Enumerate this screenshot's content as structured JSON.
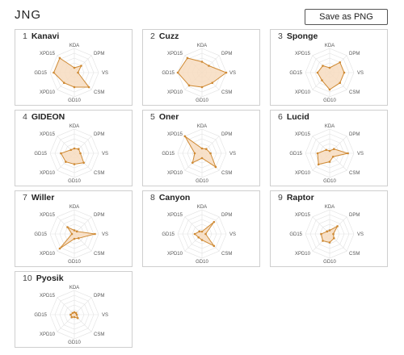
{
  "page": {
    "title": "JNG",
    "save_label": "Save as PNG"
  },
  "chart_data": {
    "type": "radar",
    "axes": [
      "KDA",
      "DPM",
      "VS",
      "CSM",
      "GD10",
      "XPD10",
      "GD15",
      "XPD15"
    ],
    "range": [
      0,
      1
    ],
    "fill_color": "#f7dcc0",
    "stroke_color": "#cf8a34",
    "grid_color": "#e2e2e2",
    "players": [
      {
        "rank": "1",
        "name": "Kanavi",
        "values": [
          0.2,
          0.4,
          0.15,
          0.85,
          0.6,
          0.6,
          0.85,
          0.85
        ]
      },
      {
        "rank": "2",
        "name": "Cuzz",
        "values": [
          0.45,
          0.4,
          1.0,
          0.6,
          0.6,
          0.75,
          1.0,
          0.85
        ]
      },
      {
        "rank": "3",
        "name": "Sponge",
        "values": [
          0.2,
          0.6,
          0.6,
          0.6,
          0.7,
          0.45,
          0.5,
          0.4
        ]
      },
      {
        "rank": "4",
        "name": "GIDEON",
        "values": [
          0.2,
          0.25,
          0.25,
          0.55,
          0.45,
          0.5,
          0.55,
          0.2
        ]
      },
      {
        "rank": "5",
        "name": "Oner",
        "values": [
          0.2,
          0.25,
          0.35,
          0.8,
          0.2,
          0.55,
          0.3,
          1.0
        ]
      },
      {
        "rank": "6",
        "name": "Lucid",
        "values": [
          0.1,
          0.25,
          0.75,
          0.2,
          0.35,
          0.65,
          0.5,
          0.2
        ]
      },
      {
        "rank": "7",
        "name": "Willer",
        "values": [
          0.15,
          0.15,
          0.85,
          0.25,
          0.2,
          0.85,
          0.1,
          0.4
        ]
      },
      {
        "rank": "8",
        "name": "Canyon",
        "values": [
          0.1,
          0.7,
          0.15,
          0.7,
          0.25,
          0.2,
          0.3,
          0.15
        ]
      },
      {
        "rank": "9",
        "name": "Raptor",
        "values": [
          0.15,
          0.45,
          0.15,
          0.25,
          0.35,
          0.4,
          0.35,
          0.15
        ]
      },
      {
        "rank": "10",
        "name": "Pyosik",
        "values": [
          0.1,
          0.1,
          0.1,
          0.2,
          0.1,
          0.15,
          0.15,
          0.1
        ]
      }
    ]
  }
}
